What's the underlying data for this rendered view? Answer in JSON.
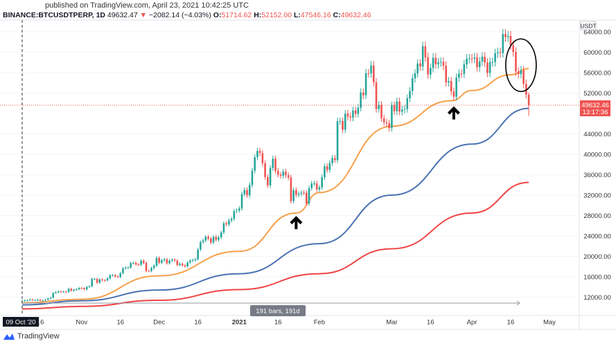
{
  "header": {
    "published": "published on TradingView.com, April 23, 2021 10:42:25 UTC",
    "symbol": "BINANCE:BTCUSDTPERP, 1D",
    "last": "49632.47",
    "change": "−2082.14 (−4.03%)",
    "o_label": "O:",
    "o": "51714.62",
    "h_label": "H:",
    "h": "52152.00",
    "l_label": "L:",
    "l": "47546.16",
    "c_label": "C:",
    "c": "49632.46"
  },
  "brand": "TradingView",
  "colors": {
    "up": "#26a69a",
    "down": "#ef5350",
    "ma_orange": "#f7a04b",
    "ma_blue": "#4a72b2",
    "ma_red": "#ef4444",
    "annotation": "#000000"
  },
  "chart_data": {
    "type": "candlestick",
    "currency": "USDT",
    "start_date": "2020-10-09",
    "interval": "1D",
    "closes": [
      11300,
      11370,
      11400,
      11550,
      11430,
      11430,
      11500,
      11330,
      11370,
      11500,
      11750,
      11920,
      12820,
      12980,
      13130,
      13040,
      13080,
      13040,
      13650,
      13290,
      13470,
      13560,
      13800,
      13760,
      13550,
      14030,
      14150,
      15590,
      15590,
      14840,
      15480,
      15330,
      15310,
      15700,
      16300,
      16320,
      16070,
      15960,
      16720,
      17660,
      17800,
      17820,
      18680,
      18710,
      18430,
      18370,
      19160,
      18720,
      17150,
      17140,
      17720,
      18180,
      19700,
      18760,
      19230,
      19440,
      18650,
      19150,
      19360,
      19170,
      18320,
      18550,
      18250,
      18040,
      18800,
      19170,
      19270,
      19440,
      21350,
      22800,
      23110,
      23850,
      23470,
      22720,
      23820,
      23240,
      23730,
      24690,
      26490,
      26270,
      27040,
      27360,
      28880,
      28990,
      29400,
      32200,
      33000,
      31970,
      33990,
      36800,
      39430,
      40670,
      40240,
      38240,
      35550,
      33920,
      37330,
      39150,
      36770,
      36010,
      35800,
      36620,
      35900,
      35460,
      30830,
      33000,
      32070,
      32260,
      32480,
      32470,
      30360,
      33360,
      34290,
      34300,
      33110,
      33520,
      35510,
      37660,
      36930,
      38290,
      39260,
      38870,
      46450,
      46520,
      44830,
      47970,
      47400,
      47190,
      48600,
      47930,
      49140,
      52120,
      51590,
      55890,
      55850,
      57400,
      54100,
      48890,
      49680,
      47070,
      46280,
      46100,
      45140,
      49590,
      48440,
      50350,
      48370,
      48760,
      48880,
      50970,
      52380,
      54880,
      55860,
      57800,
      57220,
      61190,
      59000,
      55650,
      56920,
      58930,
      57650,
      58030,
      58100,
      57350,
      54080,
      54340,
      52300,
      51300,
      55030,
      55820,
      55780,
      57630,
      58740,
      58780,
      58730,
      58970,
      57060,
      58200,
      59130,
      57990,
      55950,
      58080,
      58090,
      59770,
      60000,
      59860,
      63580,
      62960,
      63200,
      61380,
      60050,
      56220,
      55720,
      56470,
      53800,
      51714,
      49632
    ],
    "moving_averages": [
      {
        "color": "ma_orange",
        "points": [
          [
            "2020-10-09",
            10900
          ],
          [
            "2020-11-01",
            11600
          ],
          [
            "2020-12-01",
            16200
          ],
          [
            "2021-01-01",
            21000
          ],
          [
            "2021-01-23",
            28500
          ],
          [
            "2021-02-01",
            32500
          ],
          [
            "2021-03-01",
            45500
          ],
          [
            "2021-03-24",
            50500
          ],
          [
            "2021-04-01",
            52500
          ],
          [
            "2021-04-16",
            55600
          ],
          [
            "2021-04-23",
            56800
          ]
        ]
      },
      {
        "color": "ma_blue",
        "points": [
          [
            "2020-10-09",
            10500
          ],
          [
            "2020-11-01",
            11300
          ],
          [
            "2020-12-01",
            13400
          ],
          [
            "2021-01-01",
            16600
          ],
          [
            "2021-02-01",
            22500
          ],
          [
            "2021-03-01",
            32000
          ],
          [
            "2021-04-01",
            42000
          ],
          [
            "2021-04-23",
            49000
          ]
        ]
      },
      {
        "color": "ma_red",
        "points": [
          [
            "2020-10-09",
            9700
          ],
          [
            "2020-11-01",
            10200
          ],
          [
            "2020-12-01",
            11400
          ],
          [
            "2021-01-01",
            13500
          ],
          [
            "2021-02-01",
            16600
          ],
          [
            "2021-03-01",
            21500
          ],
          [
            "2021-04-01",
            28500
          ],
          [
            "2021-04-23",
            34500
          ]
        ]
      }
    ],
    "y_ticks": [
      "64000.00",
      "60000.00",
      "56000.00",
      "52000.00",
      "44000.00",
      "40000.00",
      "36000.00",
      "32000.00",
      "28000.00",
      "24000.00",
      "20000.00",
      "16000.00",
      "12000.00"
    ],
    "ylim": [
      8000,
      66000
    ],
    "x_ticks": [
      [
        "2020-10-16",
        "16"
      ],
      [
        "2020-11-01",
        "Nov"
      ],
      [
        "2020-11-16",
        "16"
      ],
      [
        "2020-12-01",
        "Dec"
      ],
      [
        "2020-12-16",
        "16"
      ],
      [
        "2021-01-01",
        "2021"
      ],
      [
        "2021-01-16",
        "16"
      ],
      [
        "2021-02-01",
        "Feb"
      ],
      [
        "2021-03-01",
        "Mar"
      ],
      [
        "2021-03-16",
        "16"
      ],
      [
        "2021-04-01",
        "Apr"
      ],
      [
        "2021-04-16",
        "16"
      ],
      [
        "2021-05-01",
        "May"
      ]
    ],
    "crosshair_date_label": "09 Oct '20",
    "measure_label": "191 bars, 191d",
    "last_price_label": "49632.46",
    "countdown_label": "13:17:36",
    "annotations": [
      {
        "type": "up-arrow",
        "date": "2021-01-23",
        "value": 29000
      },
      {
        "type": "up-arrow",
        "date": "2021-03-25",
        "value": 50500
      },
      {
        "type": "ellipse",
        "date": "2021-04-20",
        "value": 58000
      }
    ]
  }
}
